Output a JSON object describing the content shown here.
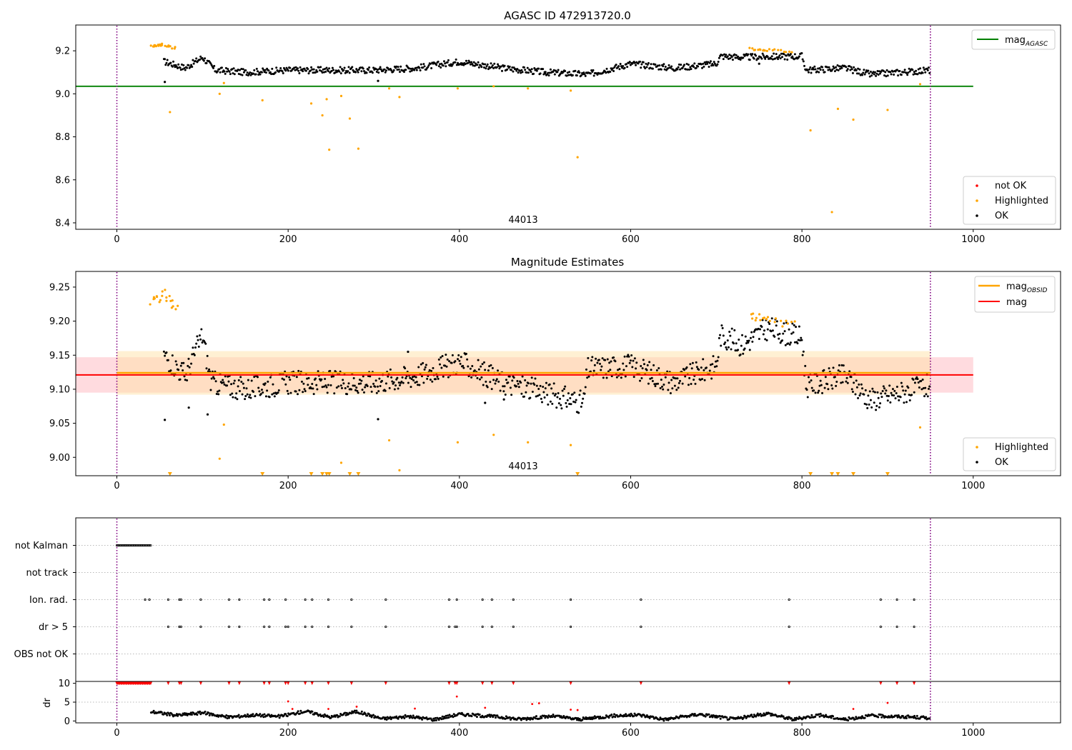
{
  "figure": {
    "panel1_title": "AGASC ID 472913720.0",
    "panel2_title": "Magnitude Estimates",
    "obsid_label": "44013"
  },
  "colors": {
    "ok": "#000000",
    "highlighted": "#ffa500",
    "not_ok": "#ff0000",
    "mag_agasc": "#008000",
    "mag_obsid": "#ffa500",
    "mag": "#ff0000",
    "obs_boundary": "#800080",
    "band_mag_fill": "#ffb0b8",
    "band_obsid_fill": "#ffe2a8"
  },
  "chart_data": [
    {
      "type": "scatter",
      "panel": "agasc",
      "title": "AGASC ID 472913720.0",
      "xlim": [
        -48,
        1102
      ],
      "ylim": [
        8.37,
        9.32
      ],
      "xticks": [
        0,
        200,
        400,
        600,
        800,
        1000
      ],
      "yticks": [
        8.4,
        8.6,
        8.8,
        9.0,
        9.2
      ],
      "mag_agasc": 9.035,
      "obs_boundaries": [
        0,
        950
      ],
      "legend": {
        "lines": [
          "mag",
          "AGASC"
        ],
        "points": [
          "not OK",
          "Highlighted",
          "OK"
        ]
      },
      "ok_trend": [
        [
          55,
          9.15
        ],
        [
          80,
          9.12
        ],
        [
          100,
          9.17
        ],
        [
          115,
          9.11
        ],
        [
          150,
          9.1
        ],
        [
          200,
          9.11
        ],
        [
          250,
          9.11
        ],
        [
          300,
          9.11
        ],
        [
          350,
          9.12
        ],
        [
          400,
          9.15
        ],
        [
          450,
          9.12
        ],
        [
          500,
          9.1
        ],
        [
          550,
          9.09
        ],
        [
          600,
          9.14
        ],
        [
          650,
          9.12
        ],
        [
          700,
          9.14
        ],
        [
          705,
          9.175
        ],
        [
          730,
          9.17
        ],
        [
          800,
          9.175
        ],
        [
          805,
          9.11
        ],
        [
          850,
          9.12
        ],
        [
          880,
          9.09
        ],
        [
          950,
          9.11
        ]
      ],
      "ok_outliers": [
        [
          56,
          9.055
        ],
        [
          305,
          9.06
        ],
        [
          500,
          9.095
        ],
        [
          750,
          9.14
        ]
      ],
      "highlighted_cluster": [
        [
          40,
          9.22
        ],
        [
          52,
          9.23
        ],
        [
          70,
          9.21
        ],
        [
          740,
          9.21
        ],
        [
          760,
          9.205
        ],
        [
          790,
          9.195
        ]
      ],
      "highlighted_points": [
        [
          62,
          8.915
        ],
        [
          120,
          9.0
        ],
        [
          125,
          9.05
        ],
        [
          170,
          8.97
        ],
        [
          227,
          8.955
        ],
        [
          240,
          8.9
        ],
        [
          245,
          8.975
        ],
        [
          248,
          8.74
        ],
        [
          262,
          8.99
        ],
        [
          272,
          8.885
        ],
        [
          282,
          8.745
        ],
        [
          318,
          9.025
        ],
        [
          330,
          8.985
        ],
        [
          398,
          9.025
        ],
        [
          440,
          9.035
        ],
        [
          480,
          9.025
        ],
        [
          530,
          9.015
        ],
        [
          538,
          8.705
        ],
        [
          810,
          8.83
        ],
        [
          835,
          8.45
        ],
        [
          842,
          8.93
        ],
        [
          860,
          8.88
        ],
        [
          900,
          8.925
        ],
        [
          938,
          9.045
        ]
      ]
    },
    {
      "type": "scatter",
      "panel": "magnitude_estimates",
      "title": "Magnitude Estimates",
      "xlim": [
        -48,
        1102
      ],
      "ylim": [
        8.973,
        9.273
      ],
      "xticks": [
        0,
        200,
        400,
        600,
        800,
        1000
      ],
      "yticks": [
        9.0,
        9.05,
        9.1,
        9.15,
        9.2,
        9.25
      ],
      "mag": 9.121,
      "mag_band": [
        9.095,
        9.147
      ],
      "mag_obsid": 9.124,
      "mag_obsid_band": [
        9.092,
        9.156
      ],
      "obs_boundaries": [
        0,
        950
      ],
      "legend": {
        "lines": [
          "mag",
          "OBSID",
          "mag"
        ],
        "points": [
          "Highlighted",
          "OK"
        ]
      },
      "ok_trend": [
        [
          55,
          9.15
        ],
        [
          80,
          9.12
        ],
        [
          100,
          9.18
        ],
        [
          110,
          9.11
        ],
        [
          150,
          9.1
        ],
        [
          200,
          9.11
        ],
        [
          250,
          9.11
        ],
        [
          300,
          9.11
        ],
        [
          350,
          9.12
        ],
        [
          400,
          9.14
        ],
        [
          450,
          9.11
        ],
        [
          500,
          9.095
        ],
        [
          545,
          9.08
        ],
        [
          550,
          9.13
        ],
        [
          600,
          9.135
        ],
        [
          650,
          9.11
        ],
        [
          700,
          9.135
        ],
        [
          705,
          9.18
        ],
        [
          730,
          9.165
        ],
        [
          760,
          9.19
        ],
        [
          800,
          9.175
        ],
        [
          805,
          9.105
        ],
        [
          850,
          9.12
        ],
        [
          880,
          9.085
        ],
        [
          950,
          9.105
        ]
      ],
      "ok_outliers": [
        [
          56,
          9.055
        ],
        [
          84,
          9.073
        ],
        [
          106,
          9.063
        ],
        [
          305,
          9.056
        ],
        [
          340,
          9.155
        ],
        [
          430,
          9.08
        ],
        [
          452,
          9.085
        ]
      ],
      "highlighted_cluster": [
        [
          40,
          9.225
        ],
        [
          55,
          9.24
        ],
        [
          72,
          9.215
        ],
        [
          740,
          9.21
        ],
        [
          760,
          9.2
        ],
        [
          795,
          9.195
        ]
      ],
      "highlighted_points": [
        [
          62,
          8.976
        ],
        [
          120,
          8.998
        ],
        [
          125,
          9.048
        ],
        [
          170,
          8.976
        ],
        [
          227,
          8.976
        ],
        [
          240,
          8.976
        ],
        [
          245,
          8.976
        ],
        [
          248,
          8.976
        ],
        [
          262,
          8.992
        ],
        [
          272,
          8.976
        ],
        [
          282,
          8.976
        ],
        [
          318,
          9.025
        ],
        [
          330,
          8.981
        ],
        [
          398,
          9.022
        ],
        [
          440,
          9.033
        ],
        [
          480,
          9.022
        ],
        [
          530,
          9.018
        ],
        [
          538,
          8.976
        ],
        [
          810,
          8.976
        ],
        [
          835,
          8.976
        ],
        [
          842,
          8.976
        ],
        [
          860,
          8.976
        ],
        [
          900,
          8.976
        ],
        [
          938,
          9.044
        ]
      ],
      "offscale_markers_x": [
        62,
        170,
        227,
        240,
        245,
        248,
        272,
        282,
        538,
        810,
        835,
        842,
        860,
        900
      ]
    },
    {
      "type": "scatter",
      "panel": "flags",
      "xlim": [
        -48,
        1102
      ],
      "categories": [
        "not Kalman",
        "not track",
        "Ion. rad.",
        "dr > 5",
        "OBS not OK"
      ],
      "flag_events": {
        "not Kalman": [
          0,
          40
        ],
        "ion_rad": [
          33,
          38,
          60,
          73,
          75,
          98,
          131,
          143,
          172,
          178,
          197,
          220,
          228,
          247,
          274,
          314,
          388,
          397,
          427,
          438,
          463,
          530,
          612,
          785,
          892,
          911,
          931
        ],
        "dr_gt_5": [
          60,
          73,
          75,
          98,
          131,
          143,
          172,
          178,
          197,
          200,
          220,
          228,
          247,
          274,
          314,
          388,
          395,
          397,
          427,
          438,
          463,
          530,
          612,
          785,
          892,
          911,
          931
        ]
      }
    },
    {
      "type": "scatter",
      "panel": "dr",
      "xlim": [
        -48,
        1102
      ],
      "ylim": [
        -0.5,
        10.5
      ],
      "ylabel": "dr",
      "yticks": [
        0,
        5,
        10
      ],
      "xticks": [
        0,
        200,
        400,
        600,
        800,
        1000
      ],
      "clipped_at_10": [
        0,
        40
      ],
      "red_points": [
        [
          200,
          5.2
        ],
        [
          205,
          3.2
        ],
        [
          247,
          3.2
        ],
        [
          280,
          3.8
        ],
        [
          348,
          3.3
        ],
        [
          397,
          6.5
        ],
        [
          430,
          3.5
        ],
        [
          485,
          4.5
        ],
        [
          493,
          4.7
        ],
        [
          530,
          3.0
        ],
        [
          538,
          2.9
        ],
        [
          860,
          3.2
        ],
        [
          900,
          4.8
        ]
      ],
      "ok_trend": [
        [
          40,
          2.5
        ],
        [
          70,
          1.5
        ],
        [
          100,
          2.2
        ],
        [
          130,
          1.0
        ],
        [
          160,
          1.6
        ],
        [
          190,
          1.2
        ],
        [
          220,
          2.6
        ],
        [
          250,
          1.0
        ],
        [
          280,
          2.5
        ],
        [
          310,
          0.6
        ],
        [
          340,
          1.2
        ],
        [
          370,
          0.4
        ],
        [
          400,
          1.8
        ],
        [
          440,
          1.2
        ],
        [
          470,
          0.5
        ],
        [
          510,
          1.3
        ],
        [
          540,
          0.4
        ],
        [
          580,
          1.4
        ],
        [
          610,
          1.6
        ],
        [
          640,
          0.4
        ],
        [
          680,
          1.8
        ],
        [
          720,
          0.5
        ],
        [
          760,
          2.0
        ],
        [
          790,
          0.4
        ],
        [
          820,
          1.6
        ],
        [
          850,
          0.4
        ],
        [
          880,
          1.4
        ],
        [
          920,
          1.1
        ],
        [
          950,
          0.8
        ]
      ]
    }
  ]
}
